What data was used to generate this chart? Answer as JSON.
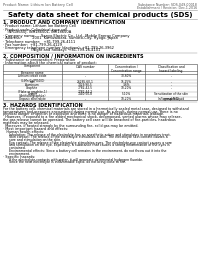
{
  "bg_color": "#ffffff",
  "header_left": "Product Name: Lithium Ion Battery Cell",
  "header_right_line1": "Substance Number: SDS-049-00018",
  "header_right_line2": "Establishment / Revision: Dec.1.2016",
  "title": "Safety data sheet for chemical products (SDS)",
  "section1_title": "1. PRODUCT AND COMPANY IDENTIFICATION",
  "section1_lines": [
    "· Product name: Lithium Ion Battery Cell",
    "· Product code: Cylindrical-type cell",
    "    INR18650J, INR18650L, INR18650A",
    "· Company name:     Sanyo Electric Co., Ltd., Mobile Energy Company",
    "· Address:          2001  Kamizaibara, Sumoto-City, Hyogo, Japan",
    "· Telephone number:   +81-799-26-4111",
    "· Fax number:  +81-799-26-4129",
    "· Emergency telephone number (daytime): +81-799-26-3962",
    "                         (Night and holiday): +81-799-26-4101"
  ],
  "section2_title": "2. COMPOSITION / INFORMATION ON INGREDIENTS",
  "section2_sub1": "· Substance or preparation: Preparation",
  "section2_sub2": "· Information about the chemical nature of product:",
  "col_starts": [
    3,
    62,
    108,
    145
  ],
  "col_ends": [
    62,
    108,
    145,
    197
  ],
  "table_headers": [
    "Component",
    "CAS number",
    "Concentration /\nConcentration range",
    "Classification and\nhazard labeling"
  ],
  "table_subheader": "Benzene name",
  "table_rows": [
    [
      "Lithium cobalt oxide\n(LiMn Co(PO4)O)",
      "-",
      "30-60%",
      "-"
    ],
    [
      "Iron",
      "26265-60-1",
      "15-25%",
      "-"
    ],
    [
      "Aluminum",
      "7429-90-5",
      "3-6%",
      "-"
    ],
    [
      "Graphite\n(Flake or graphite-1)\n(Artificial graphite)",
      "7782-42-5\n7782-44-2",
      "10-20%",
      "-"
    ],
    [
      "Copper",
      "7440-50-8",
      "5-10%",
      "Sensitization of the skin\ngroup R42"
    ],
    [
      "Organic electrolyte",
      "-",
      "10-20%",
      "Inflammable liquid"
    ]
  ],
  "section3_title": "3. HAZARDS IDENTIFICATION",
  "section3_lines": [
    "For the battery cell, chemical materials are stored in a hermetically sealed metal case, designed to withstand",
    "temperatures and pressures encountered during normal use. As a result, during normal use, there is no",
    "physical danger of ignition or explosion and there is no danger of hazardous materials leakage.",
    "  However, if exposed to a fire added mechanical shock, decomposed, vented alarms whose may release,",
    "the gas release cannot be operated. The battery cell case will be breached of fire-particles, hazardous",
    "materials may be released.",
    "  Moreover, if heated strongly by the surrounding fire, solid gas may be emitted."
  ],
  "section3_bullet1": "· Most important hazard and effects:",
  "section3_human": "   Human health effects:",
  "section3_health_lines": [
    "      Inhalation: The release of the electrolyte has an anesthetic action and stimulates in respiratory tract.",
    "      Skin contact: The release of the electrolyte stimulates a skin. The electrolyte skin contact causes a",
    "      sore and stimulation on the skin.",
    "      Eye contact: The release of the electrolyte stimulates eyes. The electrolyte eye contact causes a sore",
    "      and stimulation on the eye. Especially, a substance that causes a strong inflammation of the eyes is",
    "      contained.",
    "      Environmental effects: Since a battery cell remains in the environment, do not throw out it into the",
    "      environment."
  ],
  "section3_bullet2": "· Specific hazards:",
  "section3_specific_lines": [
    "      If the electrolyte contacts with water, it will generate detrimental hydrogen fluoride.",
    "      Since the neat electrolyte is inflammable liquid, do not bring close to fire."
  ]
}
